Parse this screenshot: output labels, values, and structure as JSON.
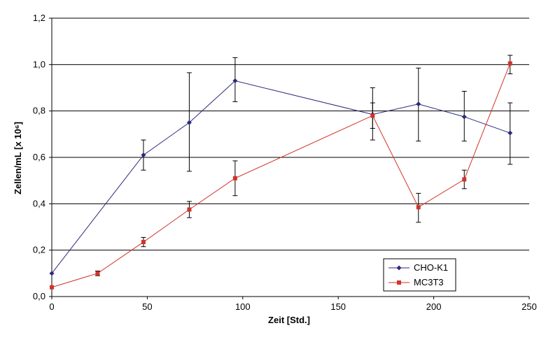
{
  "chart_data": {
    "type": "line",
    "xlabel": "Zeit [Std.]",
    "ylabel": "Zellen/mL [x 10⁶]",
    "xlim": [
      0,
      250
    ],
    "ylim": [
      0,
      1.2
    ],
    "x_ticks": [
      "0",
      "50",
      "100",
      "150",
      "200",
      "250"
    ],
    "x_tick_values": [
      0,
      50,
      100,
      150,
      200,
      250
    ],
    "y_ticks": [
      "0,0",
      "0,2",
      "0,4",
      "0,6",
      "0,8",
      "1,0",
      "1,2"
    ],
    "y_tick_values": [
      0,
      0.2,
      0.4,
      0.6,
      0.8,
      1.0,
      1.2
    ],
    "grid": "horizontal",
    "legend_position": "bottom-right",
    "series": [
      {
        "name": "CHO-K1",
        "color": "#2b2a7a",
        "marker": "diamond",
        "x": [
          0,
          48,
          72,
          96,
          168,
          192,
          216,
          240
        ],
        "y": [
          0.1,
          0.61,
          0.75,
          0.93,
          0.785,
          0.83,
          0.775,
          0.705
        ],
        "err_low": [
          0.1,
          0.545,
          0.54,
          0.84,
          0.675,
          0.67,
          0.67,
          0.57
        ],
        "err_high": [
          0.1,
          0.675,
          0.965,
          1.03,
          0.9,
          0.985,
          0.885,
          0.835
        ]
      },
      {
        "name": "MC3T3",
        "color": "#d2332a",
        "marker": "square",
        "x": [
          0,
          24,
          48,
          72,
          96,
          168,
          192,
          216,
          240
        ],
        "y": [
          0.04,
          0.1,
          0.235,
          0.375,
          0.51,
          0.78,
          0.385,
          0.505,
          1.005
        ],
        "err_low": [
          0.04,
          0.09,
          0.215,
          0.34,
          0.435,
          0.725,
          0.32,
          0.465,
          0.96
        ],
        "err_high": [
          0.04,
          0.11,
          0.255,
          0.41,
          0.585,
          0.835,
          0.445,
          0.545,
          1.04
        ]
      }
    ]
  }
}
